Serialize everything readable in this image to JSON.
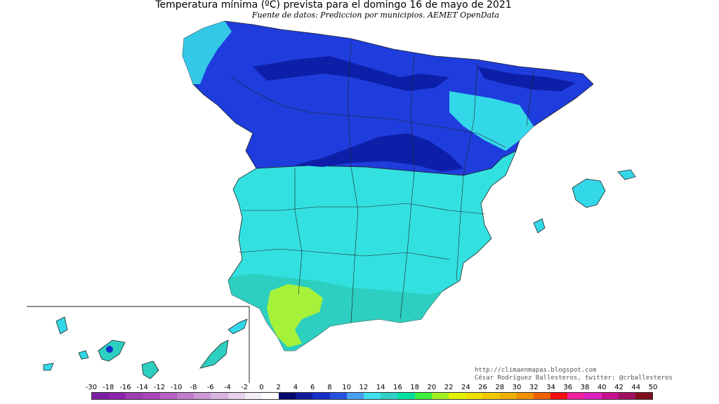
{
  "header": {
    "title": "Temperatura mínima (ºC) prevista para el domingo 16 de mayo de 2021",
    "subtitle": "Fuente de datos: Prediccion por municipios. AEMET OpenData"
  },
  "credits": {
    "url": "http://climaenmapas.blogspot.com",
    "author": "César Rodríguez Ballesteros, twitter: @crballesteros"
  },
  "legend": {
    "labels": [
      "-30",
      "-18",
      "-16",
      "-14",
      "-12",
      "-10",
      "-8",
      "-6",
      "-4",
      "-2",
      "0",
      "2",
      "4",
      "6",
      "8",
      "10",
      "12",
      "14",
      "16",
      "18",
      "20",
      "22",
      "24",
      "26",
      "28",
      "30",
      "32",
      "34",
      "36",
      "38",
      "40",
      "42",
      "44",
      "50"
    ],
    "colors": [
      "#7b1fa2",
      "#8e24aa",
      "#9c3fb0",
      "#ab47bc",
      "#b65fc4",
      "#c27ccd",
      "#cc99d6",
      "#d8b4df",
      "#e6d2ea",
      "#f4eef6",
      "#ffffff",
      "#0a0a6e",
      "#0d1a9c",
      "#1530c8",
      "#2752e0",
      "#4aa0f0",
      "#40e0f0",
      "#30d0c8",
      "#00e0a0",
      "#40f040",
      "#a0f020",
      "#e0f000",
      "#f0e000",
      "#f0c800",
      "#f0b000",
      "#f09000",
      "#f06000",
      "#f01010",
      "#f020a0",
      "#e020c0",
      "#c81090",
      "#a01060",
      "#801020"
    ]
  },
  "map_colors": {
    "north_blue": "#1e3ddc",
    "deep_blue": "#0d1fa8",
    "light_blue": "#3d7ff0",
    "cyan": "#33e8e8",
    "teal": "#2ccfc0",
    "green": "#a6f23a",
    "border": "#222222"
  }
}
